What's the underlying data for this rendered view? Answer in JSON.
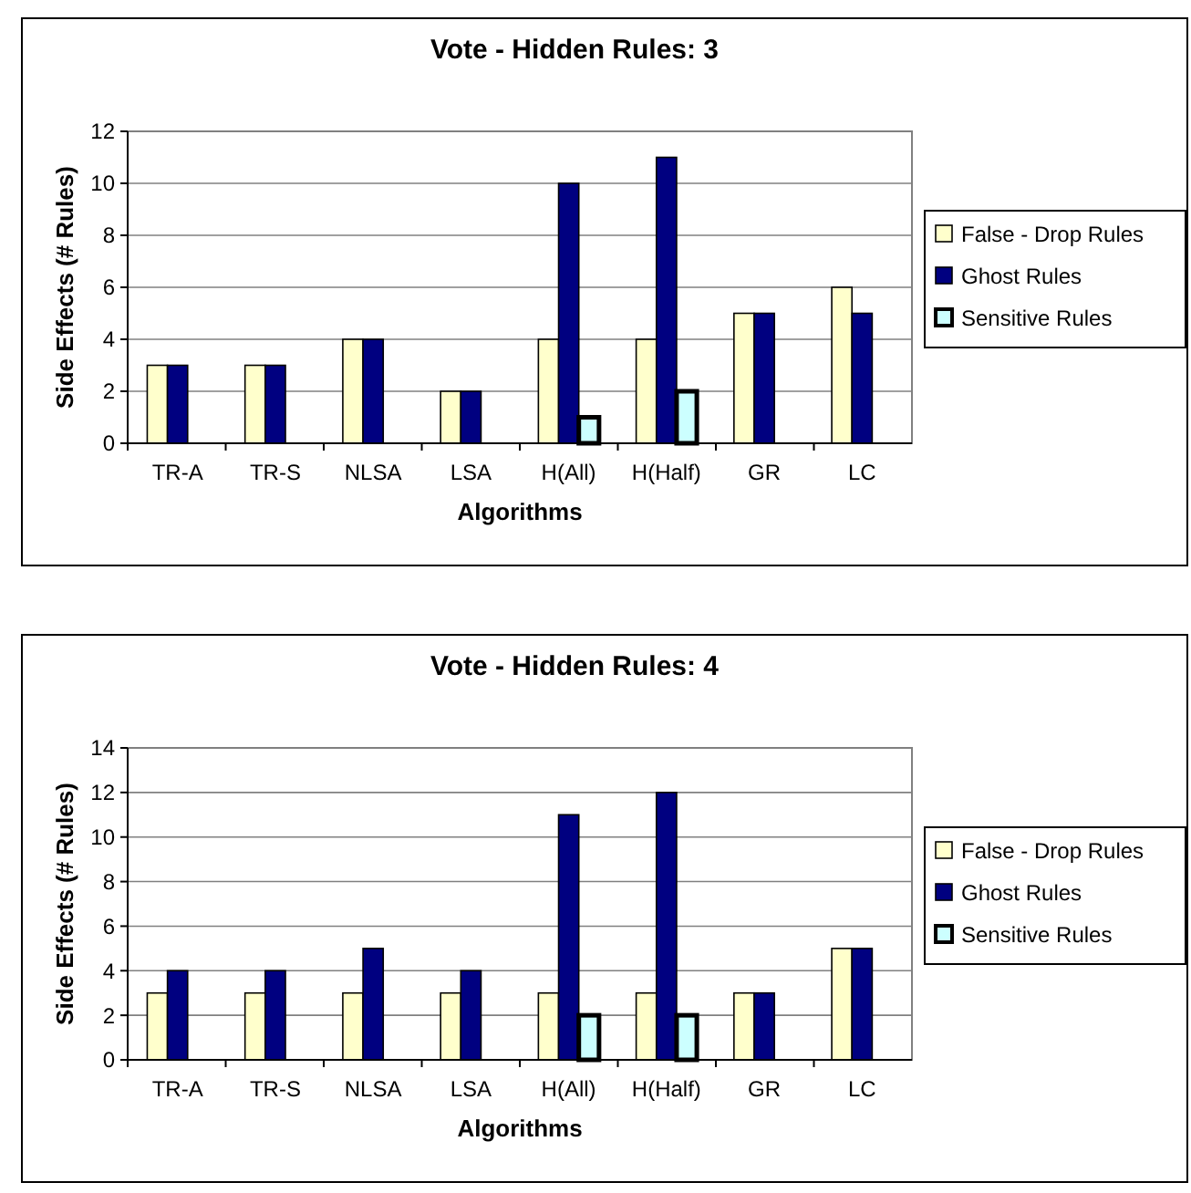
{
  "chart_data": [
    {
      "type": "bar",
      "title": "Vote - Hidden Rules: 3",
      "xlabel": "Algorithms",
      "ylabel": "Side Effects (# Rules)",
      "categories": [
        "TR-A",
        "TR-S",
        "NLSA",
        "LSA",
        "H(All)",
        "H(Half)",
        "GR",
        "LC"
      ],
      "series": [
        {
          "name": "False - Drop Rules",
          "color": "#ffffcc",
          "values": [
            3,
            3,
            4,
            2,
            4,
            4,
            5,
            6
          ]
        },
        {
          "name": "Ghost Rules",
          "color": "#000080",
          "values": [
            3,
            3,
            4,
            2,
            10,
            11,
            5,
            5
          ]
        },
        {
          "name": "Sensitive Rules",
          "color": "#ccffff",
          "values": [
            null,
            null,
            null,
            null,
            1,
            2,
            null,
            null
          ]
        }
      ],
      "ylim": [
        0,
        12
      ],
      "yticks": [
        0,
        2,
        4,
        6,
        8,
        10,
        12
      ],
      "grid": "y",
      "legend": "right"
    },
    {
      "type": "bar",
      "title": "Vote - Hidden Rules: 4",
      "xlabel": "Algorithms",
      "ylabel": "Side Effects (# Rules)",
      "categories": [
        "TR-A",
        "TR-S",
        "NLSA",
        "LSA",
        "H(All)",
        "H(Half)",
        "GR",
        "LC"
      ],
      "series": [
        {
          "name": "False - Drop Rules",
          "color": "#ffffcc",
          "values": [
            3,
            3,
            3,
            3,
            3,
            3,
            3,
            5
          ]
        },
        {
          "name": "Ghost Rules",
          "color": "#000080",
          "values": [
            4,
            4,
            5,
            4,
            11,
            12,
            3,
            5
          ]
        },
        {
          "name": "Sensitive Rules",
          "color": "#ccffff",
          "values": [
            null,
            null,
            null,
            null,
            2,
            2,
            null,
            null
          ]
        }
      ],
      "ylim": [
        0,
        14
      ],
      "yticks": [
        0,
        2,
        4,
        6,
        8,
        10,
        12,
        14
      ],
      "grid": "y",
      "legend": "right"
    }
  ]
}
